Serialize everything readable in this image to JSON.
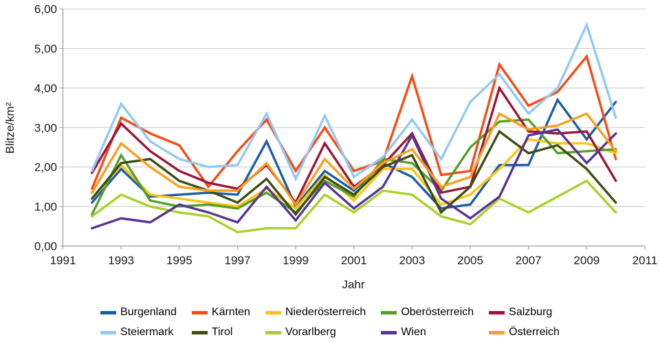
{
  "chart_data": {
    "type": "line",
    "title": "",
    "xlabel": "Jahr",
    "ylabel": "Blitze/km²",
    "xlim": [
      1991,
      2011
    ],
    "ylim": [
      0,
      6
    ],
    "grid": "horizontal",
    "legend_position": "bottom",
    "x_tick_labels": [
      "1991",
      "1993",
      "1995",
      "1997",
      "1999",
      "2001",
      "2003",
      "2005",
      "2007",
      "2009",
      "2011"
    ],
    "x_tick_years": [
      1991,
      1993,
      1995,
      1997,
      1999,
      2001,
      2003,
      2005,
      2007,
      2009,
      2011
    ],
    "y_tick_labels": [
      "0,00",
      "1,00",
      "2,00",
      "3,00",
      "4,00",
      "5,00",
      "6,00"
    ],
    "y_tick_values": [
      0,
      1,
      2,
      3,
      4,
      5,
      6
    ],
    "years": [
      1992,
      1993,
      1994,
      1995,
      1996,
      1997,
      1998,
      1999,
      2000,
      2001,
      2002,
      2003,
      2004,
      2005,
      2006,
      2007,
      2008,
      2009,
      2010
    ],
    "series": [
      {
        "name": "Burgenland",
        "color": "#1B5EA8",
        "values": [
          1.1,
          1.95,
          1.25,
          1.3,
          1.35,
          1.3,
          2.65,
          1.0,
          1.9,
          1.4,
          2.1,
          1.75,
          0.95,
          1.05,
          2.05,
          2.05,
          3.7,
          2.7,
          3.65
        ]
      },
      {
        "name": "Kärnten",
        "color": "#FA4A14",
        "values": [
          1.45,
          3.25,
          2.85,
          2.55,
          1.5,
          2.4,
          3.2,
          1.9,
          3.0,
          1.9,
          2.15,
          4.3,
          1.8,
          1.9,
          4.6,
          3.55,
          3.9,
          4.8,
          2.2
        ]
      },
      {
        "name": "Niederösterreich",
        "color": "#FDC50D",
        "values": [
          1.2,
          2.05,
          1.3,
          1.2,
          1.1,
          1.0,
          1.45,
          0.95,
          1.8,
          1.15,
          1.95,
          1.95,
          1.05,
          1.3,
          1.95,
          2.7,
          2.6,
          2.6,
          2.35
        ]
      },
      {
        "name": "Oberösterreich",
        "color": "#55A02A",
        "values": [
          0.8,
          2.3,
          1.15,
          1.0,
          1.05,
          0.95,
          1.35,
          0.85,
          1.65,
          1.25,
          2.2,
          2.1,
          1.4,
          2.5,
          3.15,
          3.2,
          2.35,
          2.4,
          2.45
        ]
      },
      {
        "name": "Salzburg",
        "color": "#9E1538",
        "values": [
          1.85,
          3.1,
          2.4,
          1.9,
          1.6,
          1.45,
          2.05,
          1.1,
          2.6,
          1.5,
          2.05,
          2.85,
          1.35,
          1.5,
          4.0,
          2.9,
          2.85,
          2.9,
          1.65
        ]
      },
      {
        "name": "Steiermark",
        "color": "#93C9F3",
        "values": [
          1.9,
          3.6,
          2.65,
          2.2,
          2.0,
          2.05,
          3.35,
          1.7,
          3.3,
          1.75,
          2.25,
          3.2,
          2.2,
          3.65,
          4.35,
          3.35,
          4.0,
          5.6,
          3.25
        ]
      },
      {
        "name": "Tirol",
        "color": "#3E4D12",
        "values": [
          1.2,
          2.1,
          2.2,
          1.65,
          1.4,
          1.1,
          1.7,
          0.8,
          1.75,
          1.3,
          2.0,
          2.3,
          0.85,
          1.5,
          2.9,
          2.35,
          2.55,
          1.95,
          1.1
        ]
      },
      {
        "name": "Vorarlberg",
        "color": "#A9D126",
        "values": [
          0.75,
          1.3,
          1.0,
          0.85,
          0.75,
          0.35,
          0.45,
          0.45,
          1.3,
          0.85,
          1.4,
          1.3,
          0.75,
          0.55,
          1.2,
          0.85,
          1.25,
          1.65,
          0.85
        ]
      },
      {
        "name": "Wien",
        "color": "#573493",
        "values": [
          0.45,
          0.7,
          0.6,
          1.05,
          0.85,
          0.6,
          1.5,
          0.65,
          1.6,
          0.95,
          1.5,
          2.8,
          1.2,
          0.7,
          1.25,
          2.8,
          2.95,
          2.1,
          2.85
        ]
      },
      {
        "name": "Österreich",
        "color": "#FB9E1C",
        "values": [
          1.35,
          2.6,
          2.0,
          1.5,
          1.4,
          1.4,
          2.1,
          1.05,
          2.2,
          1.45,
          2.1,
          2.45,
          1.5,
          1.75,
          3.35,
          2.95,
          3.05,
          3.35,
          2.4
        ]
      }
    ],
    "style": {
      "grid_color": "#c9c9c9",
      "axis_color": "#9a9a9a",
      "tick_color": "#9a9a9a",
      "line_width": 3.4
    }
  }
}
